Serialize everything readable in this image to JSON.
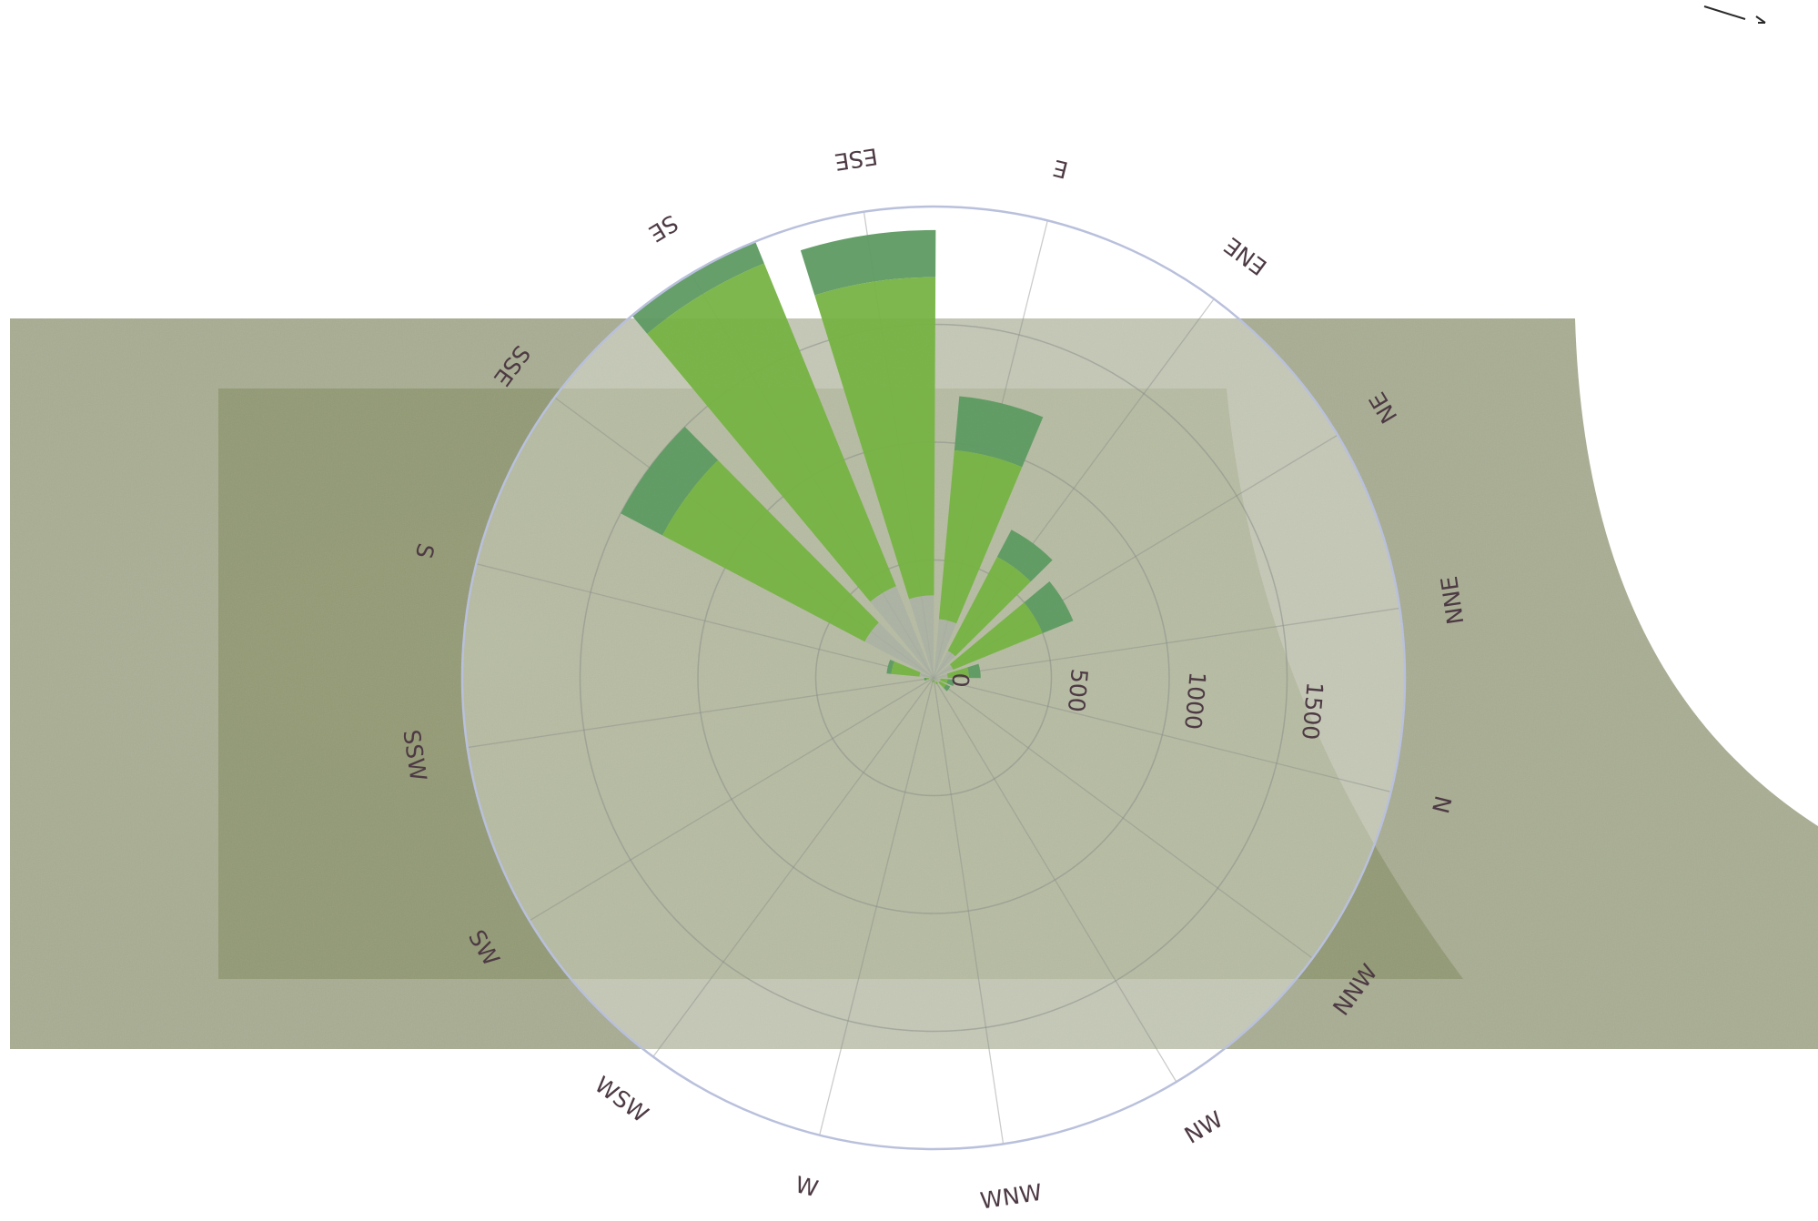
{
  "chart_data": {
    "type": "polar-bar",
    "title": "",
    "directions": [
      "N",
      "NNE",
      "NE",
      "ENE",
      "E",
      "ESE",
      "SE",
      "SSE",
      "S",
      "SSW",
      "SW",
      "WSW",
      "W",
      "WNW",
      "NW",
      "NNW"
    ],
    "radial_ticks": [
      "0",
      "500",
      "1000",
      "1500"
    ],
    "radial_tick_values": [
      0,
      500,
      1000,
      1500
    ],
    "radial_max": 2000,
    "grid": true,
    "series": [
      {
        "values": [
          30,
          60,
          90,
          130,
          250,
          350,
          420,
          330,
          60,
          20,
          10,
          5,
          10,
          10,
          20,
          30
        ]
      },
      {
        "values": [
          60,
          150,
          500,
          580,
          970,
          1700,
          1900,
          1300,
          180,
          30,
          10,
          10,
          20,
          20,
          30,
          60
        ]
      },
      {
        "values": [
          90,
          200,
          640,
          710,
          1200,
          1900,
          2000,
          1500,
          200,
          40,
          10,
          10,
          20,
          20,
          30,
          80
        ]
      }
    ],
    "colors": {
      "inner": "#aab1a4",
      "mid": "#76b343",
      "outer": "#5e9a62",
      "ring": "#b9c0dc",
      "grid": "#8a8f8a",
      "background": "#a9ad90",
      "label": "#4d3a44"
    }
  }
}
